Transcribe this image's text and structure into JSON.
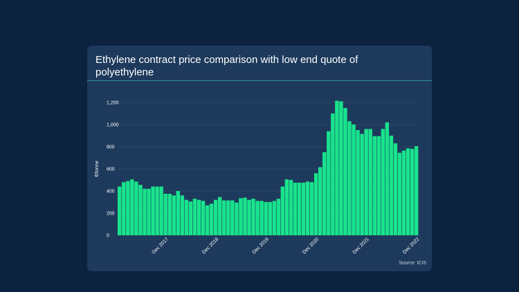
{
  "chart_data": {
    "type": "bar",
    "title": "Ethylene contract price comparison with low end quote of polyethylene",
    "ylabel": "€/tonne",
    "xlabel": "",
    "ylim": [
      0,
      1200
    ],
    "yticks": [
      "1,200",
      "1,000",
      "800",
      "600",
      "400",
      "200",
      "0"
    ],
    "ytick_values": [
      1200,
      1000,
      800,
      600,
      400,
      200,
      0
    ],
    "xtick_labels": [
      {
        "label": "Dec 2017",
        "index": 11
      },
      {
        "label": "Dec 2018",
        "index": 23
      },
      {
        "label": "Dec 2019",
        "index": 35
      },
      {
        "label": "Dec 2020",
        "index": 47
      },
      {
        "label": "Dec 2021",
        "index": 59
      },
      {
        "label": "Dec 2022",
        "index": 71
      }
    ],
    "grid": true,
    "bar_color": "#19e38c",
    "values": [
      440,
      480,
      490,
      505,
      485,
      455,
      420,
      420,
      440,
      440,
      440,
      375,
      375,
      360,
      400,
      360,
      320,
      305,
      330,
      320,
      310,
      270,
      285,
      320,
      345,
      315,
      315,
      315,
      295,
      335,
      340,
      320,
      330,
      310,
      310,
      300,
      300,
      310,
      330,
      440,
      505,
      500,
      475,
      475,
      475,
      485,
      480,
      560,
      615,
      750,
      940,
      1100,
      1215,
      1210,
      1150,
      1030,
      1000,
      950,
      915,
      960,
      960,
      895,
      895,
      960,
      1020,
      900,
      830,
      745,
      765,
      785,
      780,
      805
    ],
    "source": "Source: ICIS"
  }
}
